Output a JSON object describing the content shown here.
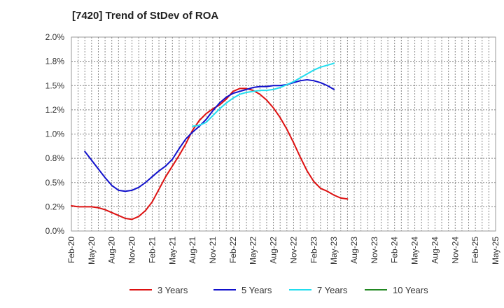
{
  "chart_data": {
    "type": "line",
    "title": "[7420]  Trend of StDev of ROA",
    "xlabel": "",
    "ylabel": "",
    "x_labels": [
      "Feb-20",
      "May-20",
      "Aug-20",
      "Nov-20",
      "Feb-21",
      "May-21",
      "Aug-21",
      "Nov-21",
      "Feb-22",
      "May-22",
      "Aug-22",
      "Nov-22",
      "Feb-23",
      "May-23",
      "Aug-23",
      "Nov-23",
      "Feb-24",
      "May-24",
      "Aug-24",
      "Nov-24",
      "Feb-25",
      "May-25"
    ],
    "y_ticks": [
      0.0,
      0.25,
      0.5,
      0.75,
      1.0,
      1.25,
      1.5,
      1.75,
      2.0
    ],
    "y_tick_labels": [
      "0.0%",
      "0.2%",
      "0.5%",
      "0.8%",
      "1.0%",
      "1.2%",
      "1.5%",
      "1.8%",
      "2.0%"
    ],
    "ylim": [
      0,
      2.0
    ],
    "grid": true,
    "legend_position": "bottom",
    "series": [
      {
        "name": "3 Years",
        "color": "#dd1111",
        "values": [
          0.26,
          0.25,
          0.25,
          0.25,
          0.24,
          0.22,
          0.19,
          0.16,
          0.13,
          0.12,
          0.15,
          0.21,
          0.3,
          0.43,
          0.56,
          0.67,
          0.78,
          0.9,
          1.04,
          1.14,
          1.21,
          1.26,
          1.3,
          1.36,
          1.44,
          1.47,
          1.47,
          1.45,
          1.41,
          1.35,
          1.27,
          1.17,
          1.05,
          0.91,
          0.76,
          0.62,
          0.51,
          0.44,
          0.41,
          0.37,
          0.34,
          0.33
        ]
      },
      {
        "name": "5 Years",
        "color": "#1111cc",
        "values": [
          null,
          null,
          0.82,
          0.73,
          0.64,
          0.55,
          0.47,
          0.42,
          0.41,
          0.42,
          0.45,
          0.5,
          0.56,
          0.62,
          0.67,
          0.74,
          0.85,
          0.95,
          1.02,
          1.08,
          1.15,
          1.24,
          1.32,
          1.38,
          1.42,
          1.44,
          1.46,
          1.48,
          1.49,
          1.49,
          1.5,
          1.5,
          1.51,
          1.53,
          1.55,
          1.56,
          1.55,
          1.53,
          1.5,
          1.46
        ]
      },
      {
        "name": "7 Years",
        "color": "#22ddee",
        "values": [
          null,
          null,
          null,
          null,
          null,
          null,
          null,
          null,
          null,
          null,
          null,
          null,
          null,
          null,
          null,
          null,
          null,
          null,
          1.08,
          1.09,
          1.12,
          1.19,
          1.26,
          1.32,
          1.37,
          1.41,
          1.43,
          1.44,
          1.45,
          1.45,
          1.46,
          1.48,
          1.51,
          1.54,
          1.58,
          1.62,
          1.66,
          1.69,
          1.71,
          1.73
        ]
      },
      {
        "name": "10 Years",
        "color": "#228822",
        "values": []
      }
    ]
  }
}
